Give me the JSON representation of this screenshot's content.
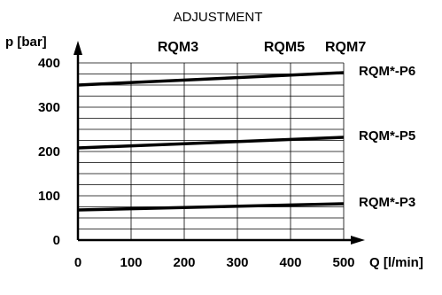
{
  "chart_data": {
    "type": "line",
    "title": "ADJUSTMENT",
    "xlabel": "Q [l/min]",
    "ylabel": "p [bar]",
    "xlim": [
      0,
      500
    ],
    "ylim": [
      0,
      400
    ],
    "x_ticks": [
      "0",
      "100",
      "200",
      "300",
      "400",
      "500"
    ],
    "y_ticks": [
      "0",
      "100",
      "200",
      "300",
      "400"
    ],
    "grid": true,
    "size_labels": [
      {
        "label": "RQM3",
        "x": 200
      },
      {
        "label": "RQM5",
        "x": 400
      },
      {
        "label": "RQM7",
        "x": 500
      }
    ],
    "series": [
      {
        "name": "RQM*-P6",
        "x": [
          0,
          500
        ],
        "values": [
          350,
          378
        ]
      },
      {
        "name": "RQM*-P5",
        "x": [
          0,
          500
        ],
        "values": [
          208,
          232
        ]
      },
      {
        "name": "RQM*-P3",
        "x": [
          0,
          500
        ],
        "values": [
          68,
          82
        ]
      }
    ]
  }
}
